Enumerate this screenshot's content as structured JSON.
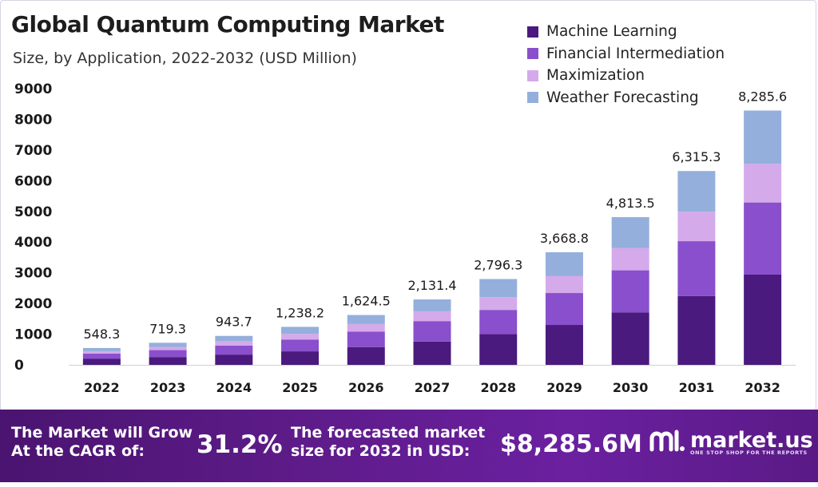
{
  "header": {
    "title": "Global Quantum Computing Market",
    "subtitle": "Size, by Application, 2022-2032 (USD Million)"
  },
  "chart_data": {
    "type": "bar",
    "stacked": true,
    "categories": [
      "2022",
      "2023",
      "2024",
      "2025",
      "2026",
      "2027",
      "2028",
      "2029",
      "2030",
      "2031",
      "2032"
    ],
    "series": [
      {
        "name": "Machine Learning",
        "color": "#4a1a7e",
        "values": [
          195,
          255,
          335,
          440,
          580,
          760,
          1000,
          1300,
          1710,
          2240,
          2940
        ]
      },
      {
        "name": "Financial Intermediation",
        "color": "#8a4fcc",
        "values": [
          170,
          225,
          295,
          385,
          505,
          665,
          790,
          1040,
          1370,
          1790,
          2350
        ]
      },
      {
        "name": "Maximization",
        "color": "#d4aaeb",
        "values": [
          80,
          105,
          140,
          185,
          245,
          320,
          420,
          560,
          730,
          960,
          1260
        ]
      },
      {
        "name": "Weather Forecasting",
        "color": "#94afdc",
        "values": [
          103.3,
          134.3,
          173.7,
          228.2,
          294.5,
          386.4,
          586.3,
          768.8,
          1003.5,
          1325.3,
          1735.6
        ]
      }
    ],
    "totals": [
      548.3,
      719.3,
      943.7,
      1238.2,
      1624.5,
      2131.4,
      2796.3,
      3668.8,
      4813.5,
      6315.3,
      8285.6
    ],
    "total_labels": [
      "548.3",
      "719.3",
      "943.7",
      "1,238.2",
      "1,624.5",
      "2,131.4",
      "2,796.3",
      "3,668.8",
      "4,813.5",
      "6,315.3",
      "8,285.6"
    ],
    "yticks": [
      0,
      1000,
      2000,
      3000,
      4000,
      5000,
      6000,
      7000,
      8000,
      9000
    ],
    "ylim": [
      0,
      9000
    ],
    "xlabel": "",
    "ylabel": "",
    "grid": false,
    "legend_position": "top-right"
  },
  "footer": {
    "cagr_label_line1": "The Market will Grow",
    "cagr_label_line2": "At the CAGR of:",
    "cagr_value": "31.2%",
    "forecast_label_line1": "The forecasted market",
    "forecast_label_line2": "size for 2032 in USD:",
    "forecast_value": "$8,285.6M",
    "brand_name": "market.us",
    "brand_tagline": "ONE STOP SHOP FOR THE REPORTS"
  }
}
